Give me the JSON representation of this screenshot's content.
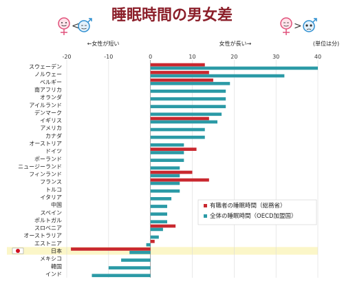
{
  "title": "睡眠時間の男女差",
  "annotations": {
    "left_note": "←女性が短い",
    "right_note": "女性が長い→",
    "unit": "(単位は分)",
    "left_icon_symbol": "<",
    "right_icon_symbol": ">"
  },
  "colors": {
    "employed": "#c9282f",
    "overall": "#2b9aa6",
    "title": "#8b1f2a",
    "highlight": "#fbf6c8",
    "female_icon": "#e0507a",
    "male_icon": "#2f8fd0"
  },
  "chart_data": {
    "type": "bar",
    "orientation": "horizontal",
    "title": "睡眠時間の男女差",
    "xlim": [
      -20,
      40
    ],
    "xticks": [
      -20,
      -10,
      0,
      10,
      20,
      30,
      40
    ],
    "categories": [
      "スウェーデン",
      "ノルウェー",
      "ベルギー",
      "南アフリカ",
      "オランダ",
      "アイルランド",
      "デンマーク",
      "イギリス",
      "アメリカ",
      "カナダ",
      "オーストリア",
      "ドイツ",
      "ポーランド",
      "ニュージーランド",
      "フィンランド",
      "フランス",
      "トルコ",
      "イタリア",
      "中国",
      "スペイン",
      "ポルトガル",
      "スロベニア",
      "オーストラリア",
      "エストニア",
      "日本",
      "メキシコ",
      "韓国",
      "インド"
    ],
    "highlight_category": "日本",
    "series": [
      {
        "name": "有職者の睡眠時間（総務省）",
        "color": "#c9282f",
        "values": [
          13,
          14,
          15,
          null,
          null,
          null,
          null,
          14,
          null,
          null,
          null,
          11,
          null,
          null,
          10,
          14,
          null,
          null,
          null,
          null,
          null,
          6,
          null,
          1,
          -19,
          null,
          null,
          null
        ]
      },
      {
        "name": "全体の睡眠時間（OECD加盟国）",
        "color": "#2b9aa6",
        "values": [
          40,
          32,
          19,
          18,
          18,
          18,
          17,
          16,
          13,
          13,
          8,
          8,
          8,
          7,
          7,
          7,
          7,
          5,
          4,
          4,
          4,
          3,
          2,
          -1,
          -5,
          -7,
          -10,
          -14
        ]
      }
    ],
    "legend_position": "lower-right"
  }
}
